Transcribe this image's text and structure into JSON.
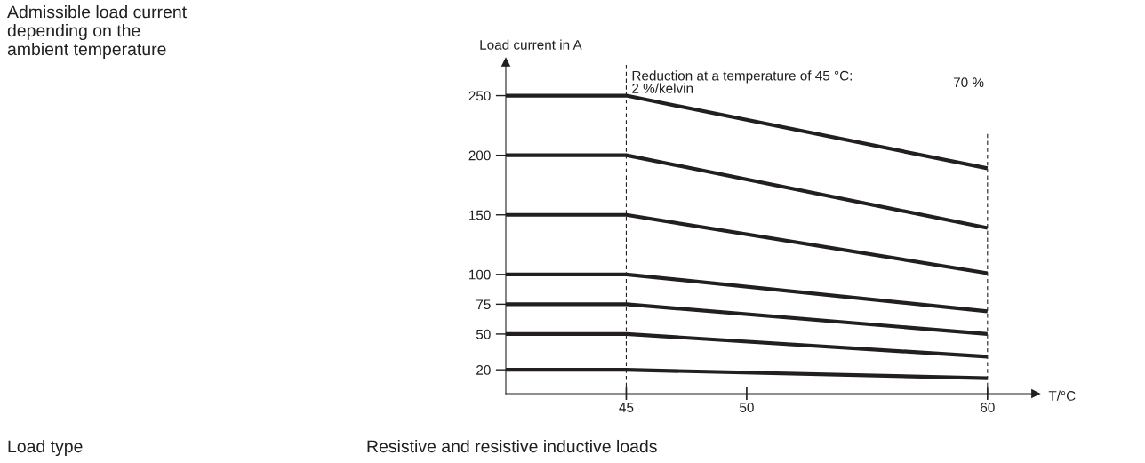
{
  "chart_data": {
    "type": "line",
    "title": "Admissible load current\ndepending on the\nambient temperature",
    "ylabel": "Load current in A",
    "xlabel": "T/°C",
    "x": [
      40,
      45,
      60
    ],
    "series": [
      {
        "color": "#231f20",
        "values": [
          250,
          250,
          189
        ]
      },
      {
        "color": "#231f20",
        "values": [
          200,
          200,
          139
        ]
      },
      {
        "color": "#231f20",
        "values": [
          150,
          150,
          101
        ]
      },
      {
        "color": "#231f20",
        "values": [
          100,
          100,
          69
        ]
      },
      {
        "color": "#231f20",
        "values": [
          75,
          75,
          50
        ]
      },
      {
        "color": "#231f20",
        "values": [
          50,
          50,
          31
        ]
      },
      {
        "color": "#231f20",
        "values": [
          20,
          20,
          13
        ]
      }
    ],
    "xlim": [
      40,
      62
    ],
    "ylim": [
      0,
      278
    ],
    "xticks": [
      45,
      50,
      60
    ],
    "yticks": [
      20,
      50,
      75,
      100,
      150,
      200,
      250
    ],
    "ref_lines": [
      {
        "axis": "x",
        "value": 45,
        "label": "Reduction at a temperature of 45 °C:\n2 %/kelvin",
        "color": "#231f20",
        "line_style": "dashed"
      },
      {
        "axis": "x",
        "value": 60,
        "color": "#231f20",
        "line_style": "dashed"
      }
    ],
    "annotations": [
      "Load type",
      "Resistive and resistive inductive loads",
      "70 %"
    ],
    "grid": false,
    "legend": false,
    "marker": "none",
    "line_style": "solid"
  }
}
